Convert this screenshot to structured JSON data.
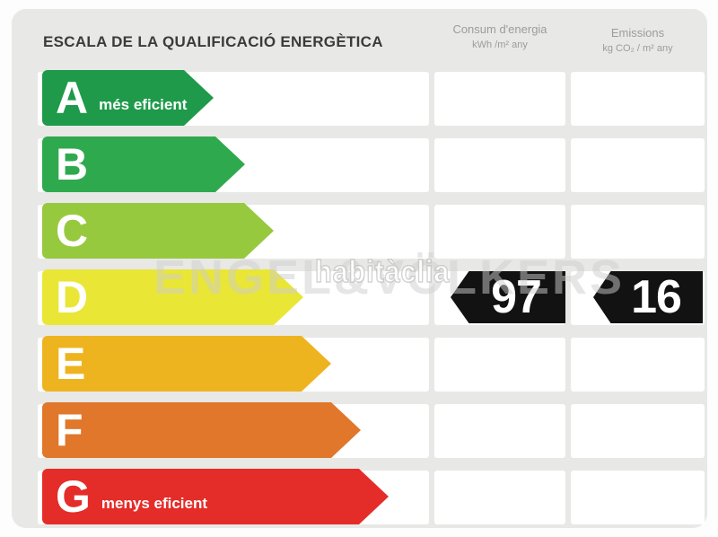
{
  "title": "ESCALA DE LA QUALIFICACIÓ ENERGÈTICA",
  "columns": {
    "consumption": {
      "label": "Consum d'energia",
      "unit": "kWh /m² any"
    },
    "emissions": {
      "label": "Emissions",
      "unit": "kg CO₂ / m² any"
    }
  },
  "scale": [
    {
      "grade": "A",
      "label": "més eficient",
      "color": "#1e9a4a"
    },
    {
      "grade": "B",
      "label": "",
      "color": "#2fa94d"
    },
    {
      "grade": "C",
      "label": "",
      "color": "#97c93f"
    },
    {
      "grade": "D",
      "label": "",
      "color": "#e9e636"
    },
    {
      "grade": "E",
      "label": "",
      "color": "#eeb41f"
    },
    {
      "grade": "F",
      "label": "",
      "color": "#e0772a"
    },
    {
      "grade": "G",
      "label": "menys eficient",
      "color": "#e42c29"
    }
  ],
  "rating": {
    "grade": "D",
    "consumption_value": "97",
    "emissions_value": "16",
    "arrow_color": "#121212"
  },
  "watermarks": {
    "brand": "ENGEL&VÖLKERS",
    "portal": "habitàclia"
  },
  "chart_data": {
    "type": "bar",
    "orientation": "horizontal",
    "title": "ESCALA DE LA QUALIFICACIÓ ENERGÈTICA",
    "categories": [
      "A",
      "B",
      "C",
      "D",
      "E",
      "F",
      "G"
    ],
    "category_notes": {
      "A": "més eficient",
      "G": "menys eficient"
    },
    "bar_colors": [
      "#1e9a4a",
      "#2fa94d",
      "#97c93f",
      "#e9e636",
      "#eeb41f",
      "#e0772a",
      "#e42c29"
    ],
    "bar_relative_lengths": [
      1.0,
      1.18,
      1.35,
      1.52,
      1.69,
      1.86,
      2.02
    ],
    "rated_grade": "D",
    "series": [
      {
        "name": "Consum d'energia (kWh /m² any)",
        "values": [
          null,
          null,
          null,
          97,
          null,
          null,
          null
        ]
      },
      {
        "name": "Emissions (kg CO₂ / m² any)",
        "values": [
          null,
          null,
          null,
          16,
          null,
          null,
          null
        ]
      }
    ],
    "legend": "none",
    "grid": "off"
  }
}
